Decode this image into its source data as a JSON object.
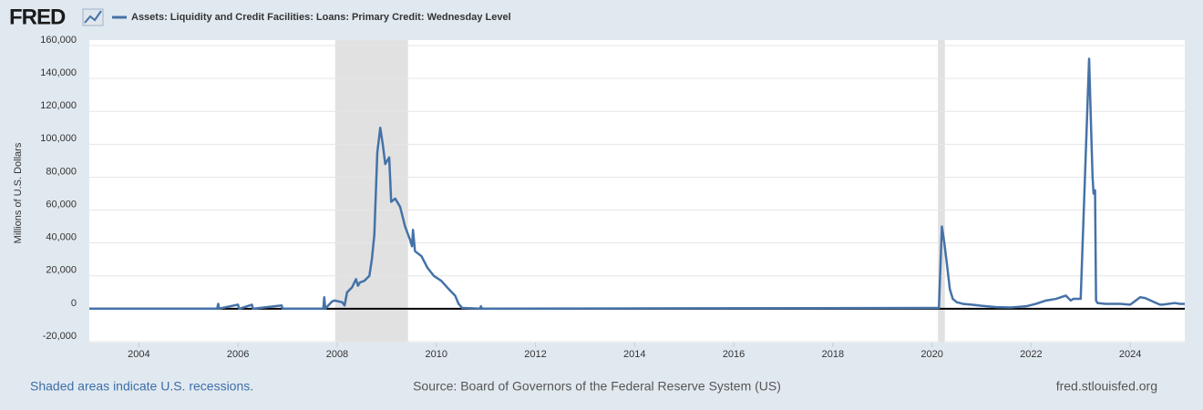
{
  "chart_data": {
    "type": "line",
    "logo": "FRED",
    "ylabel": "Millions of U.S. Dollars",
    "footer_left": "Shaded areas indicate U.S. recessions.",
    "source": "Source: Board of Governors of the Federal Reserve System (US)",
    "footer_right": "fred.stlouisfed.org",
    "xlim": [
      2003.0,
      2025.1
    ],
    "xticks": [
      2004,
      2006,
      2008,
      2010,
      2012,
      2014,
      2016,
      2018,
      2020,
      2022,
      2024
    ],
    "ylim": [
      -20000,
      160000
    ],
    "yticks": [
      {
        "value": -20000,
        "label": "-20,000"
      },
      0,
      {
        "value": 20000,
        "label": "20,000"
      },
      {
        "value": 40000,
        "label": "40,000"
      },
      {
        "value": 60000,
        "label": "60,000"
      },
      {
        "value": 80000,
        "label": "80,000"
      },
      {
        "value": 100000,
        "label": "100,000"
      },
      {
        "value": 120000,
        "label": "120,000"
      },
      {
        "value": 140000,
        "label": "140,000"
      },
      {
        "value": 160000,
        "label": "160,000"
      }
    ],
    "grid": true,
    "recessions": [
      [
        2007.96,
        2009.43
      ],
      [
        2020.12,
        2020.26
      ]
    ],
    "x": [
      2003.0,
      2005.58,
      2005.6,
      2005.62,
      2006.0,
      2006.02,
      2006.04,
      2006.28,
      2006.3,
      2006.32,
      2006.88,
      2006.9,
      2006.92,
      2007.72,
      2007.74,
      2007.76,
      2007.9,
      2007.95,
      2008.1,
      2008.15,
      2008.2,
      2008.3,
      2008.38,
      2008.42,
      2008.46,
      2008.55,
      2008.65,
      2008.7,
      2008.75,
      2008.81,
      2008.87,
      2008.92,
      2008.97,
      2009.05,
      2009.09,
      2009.17,
      2009.27,
      2009.37,
      2009.47,
      2009.51,
      2009.53,
      2009.57,
      2009.7,
      2009.82,
      2009.95,
      2010.1,
      2010.25,
      2010.38,
      2010.45,
      2010.52,
      2010.88,
      2010.9,
      2010.92,
      2011.1,
      2020.14,
      2020.2,
      2020.24,
      2020.27,
      2020.31,
      2020.36,
      2020.42,
      2020.5,
      2020.62,
      2020.8,
      2021.0,
      2021.3,
      2021.6,
      2021.9,
      2022.1,
      2022.3,
      2022.5,
      2022.7,
      2022.8,
      2022.85,
      2023.0,
      2023.17,
      2023.21,
      2023.24,
      2023.26,
      2023.29,
      2023.31,
      2023.34,
      2023.5,
      2023.8,
      2024.0,
      2024.2,
      2024.3,
      2024.6,
      2024.65,
      2024.9,
      2025.0,
      2025.1
    ],
    "series": [
      {
        "name": "Assets: Liquidity and Credit Facilities: Loans: Primary Credit: Wednesday Level",
        "color": "#4572a7",
        "values": [
          100,
          100,
          3000,
          100,
          2500,
          100,
          100,
          2500,
          100,
          100,
          2000,
          100,
          100,
          100,
          7000,
          100,
          4500,
          5000,
          4000,
          2000,
          10000,
          13000,
          18000,
          14000,
          16000,
          17000,
          20000,
          30000,
          45000,
          95000,
          110000,
          100000,
          88000,
          92000,
          65000,
          67000,
          62000,
          50000,
          42000,
          38000,
          48000,
          35000,
          32000,
          25000,
          20000,
          17000,
          12000,
          8000,
          3000,
          500,
          100,
          1500,
          100,
          100,
          500,
          50000,
          42000,
          35000,
          25000,
          12000,
          6000,
          4000,
          3000,
          2500,
          1800,
          1000,
          800,
          1500,
          3000,
          5000,
          6000,
          8000,
          5000,
          6000,
          6000,
          152000,
          110000,
          80000,
          70000,
          72000,
          5000,
          3500,
          3000,
          3000,
          2500,
          7000,
          6500,
          2500,
          2500,
          3500,
          3000,
          3000
        ]
      }
    ]
  }
}
